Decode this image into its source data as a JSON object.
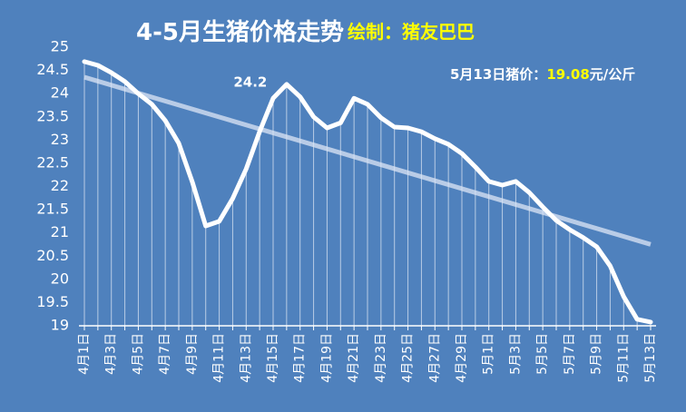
{
  "chart_data": {
    "type": "line",
    "title": "4-5月生猪价格走势",
    "credit": "绘制：猪友巴巴",
    "note": {
      "prefix": "5月13日猪价：",
      "value": "19.08",
      "unit": "元/公斤"
    },
    "categories": [
      "4月1日",
      null,
      "4月3日",
      null,
      "4月5日",
      null,
      "4月7日",
      null,
      "4月9日",
      null,
      "4月11日",
      null,
      "4月13日",
      null,
      "4月15日",
      null,
      "4月17日",
      null,
      "4月19日",
      null,
      "4月21日",
      null,
      "4月23日",
      null,
      "4月25日",
      null,
      "4月27日",
      null,
      "4月29日",
      null,
      "5月1日",
      null,
      "5月3日",
      null,
      "5月5日",
      null,
      "5月7日",
      null,
      "5月9日",
      null,
      "5月11日",
      null,
      "5月13日"
    ],
    "values": [
      24.69,
      24.61,
      24.45,
      24.26,
      24.0,
      23.77,
      23.42,
      22.93,
      22.1,
      21.15,
      21.25,
      21.74,
      22.38,
      23.18,
      23.9,
      24.2,
      23.93,
      23.5,
      23.26,
      23.37,
      23.9,
      23.77,
      23.48,
      23.28,
      23.26,
      23.18,
      23.03,
      22.91,
      22.71,
      22.42,
      22.11,
      22.03,
      22.11,
      21.87,
      21.56,
      21.27,
      21.07,
      20.9,
      20.7,
      20.29,
      19.63,
      19.14,
      19.08
    ],
    "value_labels": [
      null,
      null,
      null,
      null,
      null,
      null,
      null,
      null,
      null,
      null,
      null,
      null,
      null,
      null,
      null,
      "24.2",
      null,
      null,
      null,
      null,
      null,
      null,
      null,
      null,
      null,
      null,
      null,
      null,
      null,
      null,
      null,
      null,
      null,
      null,
      null,
      null,
      null,
      null,
      null,
      null,
      null,
      null,
      null
    ],
    "color": "#ffffff",
    "trendline": true,
    "drop_lines": true,
    "ylim": [
      19,
      25
    ],
    "yticks": [
      19,
      19.5,
      20,
      20.5,
      21,
      21.5,
      22,
      22.5,
      23,
      23.5,
      24,
      24.5,
      25
    ]
  }
}
